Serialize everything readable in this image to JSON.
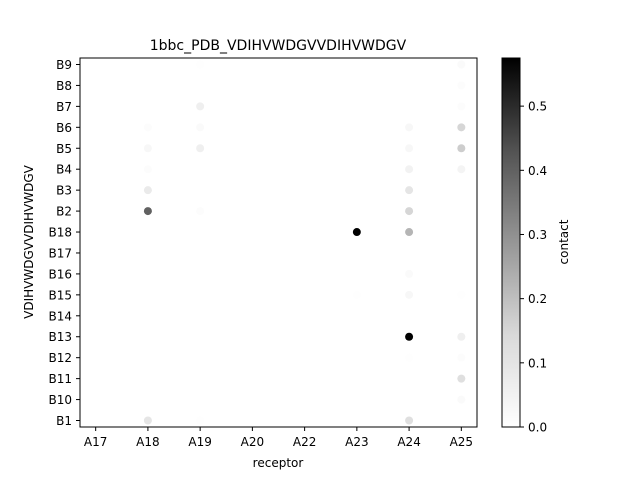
{
  "chart_data": {
    "type": "scatter",
    "title": "1bbc_PDB_VDIHVWDGVVDIHVWDGV",
    "xlabel": "receptor",
    "ylabel": "VDIHVWDGVVDIHVWDGV",
    "x_categories": [
      "A17",
      "A18",
      "A19",
      "A20",
      "A22",
      "A23",
      "A24",
      "A25"
    ],
    "y_categories": [
      "B1",
      "B10",
      "B11",
      "B12",
      "B13",
      "B14",
      "B15",
      "B16",
      "B17",
      "B18",
      "B2",
      "B3",
      "B4",
      "B5",
      "B6",
      "B7",
      "B8",
      "B9"
    ],
    "colorbar": {
      "label": "contact",
      "min": 0.0,
      "max": 0.575,
      "ticks": [
        "0.0",
        "0.1",
        "0.2",
        "0.3",
        "0.4",
        "0.5"
      ],
      "colormap": "Greys"
    },
    "points": [
      {
        "x": "A18",
        "y": "B1",
        "value": 0.1
      },
      {
        "x": "A19",
        "y": "B1",
        "value": 0.005
      },
      {
        "x": "A24",
        "y": "B1",
        "value": 0.12
      },
      {
        "x": "A25",
        "y": "B10",
        "value": 0.02
      },
      {
        "x": "A25",
        "y": "B11",
        "value": 0.12
      },
      {
        "x": "A24",
        "y": "B12",
        "value": 0.005
      },
      {
        "x": "A25",
        "y": "B12",
        "value": 0.01
      },
      {
        "x": "A24",
        "y": "B13",
        "value": 0.575
      },
      {
        "x": "A25",
        "y": "B13",
        "value": 0.06
      },
      {
        "x": "A23",
        "y": "B15",
        "value": 0.005
      },
      {
        "x": "A24",
        "y": "B15",
        "value": 0.03
      },
      {
        "x": "A25",
        "y": "B15",
        "value": 0.005
      },
      {
        "x": "A24",
        "y": "B16",
        "value": 0.02
      },
      {
        "x": "A23",
        "y": "B18",
        "value": 0.575
      },
      {
        "x": "A24",
        "y": "B18",
        "value": 0.22
      },
      {
        "x": "A18",
        "y": "B2",
        "value": 0.4
      },
      {
        "x": "A19",
        "y": "B2",
        "value": 0.01
      },
      {
        "x": "A24",
        "y": "B2",
        "value": 0.15
      },
      {
        "x": "A18",
        "y": "B3",
        "value": 0.08
      },
      {
        "x": "A24",
        "y": "B3",
        "value": 0.1
      },
      {
        "x": "A18",
        "y": "B4",
        "value": 0.01
      },
      {
        "x": "A24",
        "y": "B4",
        "value": 0.05
      },
      {
        "x": "A25",
        "y": "B4",
        "value": 0.04
      },
      {
        "x": "A18",
        "y": "B5",
        "value": 0.03
      },
      {
        "x": "A19",
        "y": "B5",
        "value": 0.06
      },
      {
        "x": "A24",
        "y": "B5",
        "value": 0.03
      },
      {
        "x": "A25",
        "y": "B5",
        "value": 0.17
      },
      {
        "x": "A18",
        "y": "B6",
        "value": 0.01
      },
      {
        "x": "A19",
        "y": "B6",
        "value": 0.02
      },
      {
        "x": "A24",
        "y": "B6",
        "value": 0.03
      },
      {
        "x": "A25",
        "y": "B6",
        "value": 0.15
      },
      {
        "x": "A19",
        "y": "B7",
        "value": 0.06
      },
      {
        "x": "A25",
        "y": "B7",
        "value": 0.01
      },
      {
        "x": "A25",
        "y": "B8",
        "value": 0.01
      },
      {
        "x": "A19",
        "y": "B9",
        "value": 0.005
      },
      {
        "x": "A25",
        "y": "B9",
        "value": 0.02
      }
    ]
  }
}
